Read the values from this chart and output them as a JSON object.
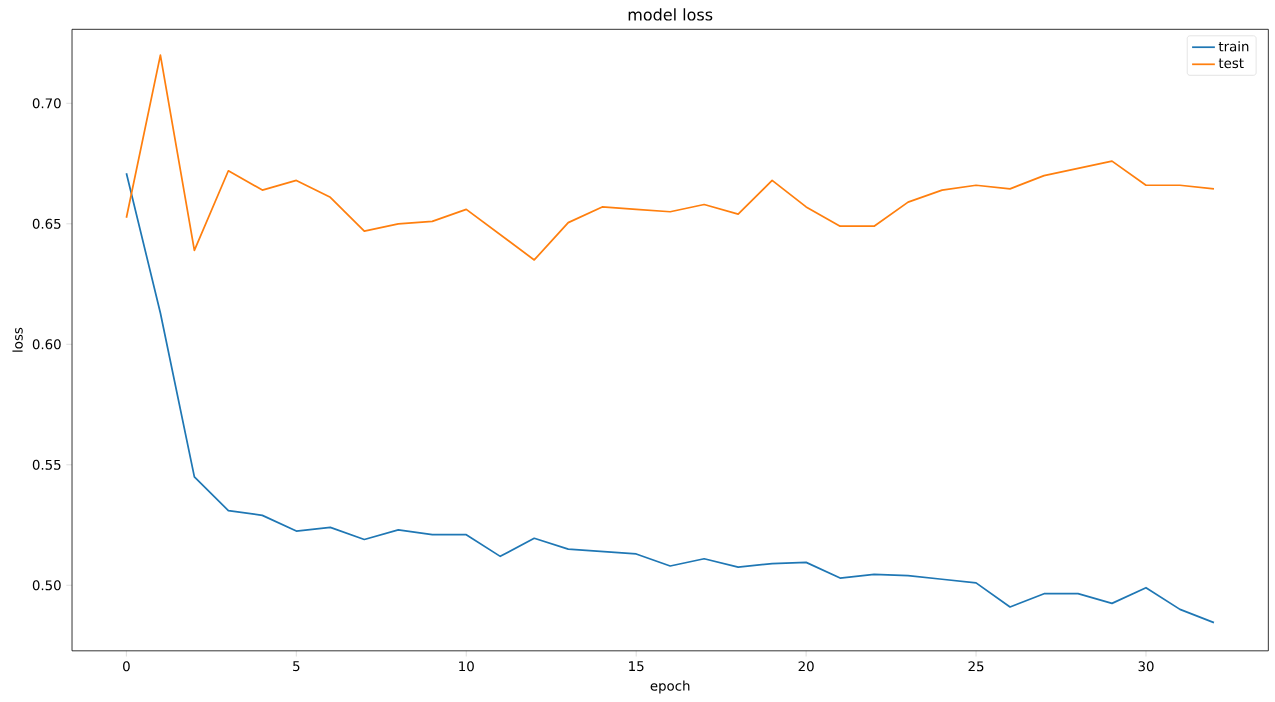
{
  "chart_data": {
    "type": "line",
    "title": "model loss",
    "xlabel": "epoch",
    "ylabel": "loss",
    "x": [
      0,
      1,
      2,
      3,
      4,
      5,
      6,
      7,
      8,
      9,
      10,
      11,
      12,
      13,
      14,
      15,
      16,
      17,
      18,
      19,
      20,
      21,
      22,
      23,
      24,
      25,
      26,
      27,
      28,
      29,
      30,
      31,
      32
    ],
    "series": [
      {
        "name": "train",
        "color": "#1f77b4",
        "values": [
          0.671,
          0.613,
          0.545,
          0.531,
          0.529,
          0.5225,
          0.524,
          0.519,
          0.523,
          0.521,
          0.521,
          0.512,
          0.5195,
          0.515,
          0.514,
          0.513,
          0.508,
          0.511,
          0.5075,
          0.509,
          0.5095,
          0.503,
          0.5045,
          0.504,
          0.5025,
          0.501,
          0.491,
          0.4965,
          0.4965,
          0.4925,
          0.499,
          0.49,
          0.4845
        ]
      },
      {
        "name": "test",
        "color": "#ff7f0e",
        "values": [
          0.6525,
          0.72,
          0.639,
          0.672,
          0.664,
          0.668,
          0.661,
          0.647,
          0.65,
          0.651,
          0.656,
          0.6455,
          0.635,
          0.6505,
          0.657,
          0.656,
          0.655,
          0.658,
          0.654,
          0.668,
          0.657,
          0.649,
          0.649,
          0.659,
          0.664,
          0.666,
          0.6645,
          0.67,
          0.673,
          0.676,
          0.666,
          0.666,
          0.6645
        ]
      }
    ],
    "xlim": [
      -1.6,
      33.6
    ],
    "ylim": [
      0.4728,
      0.7307
    ],
    "xticks": [
      0,
      5,
      10,
      15,
      20,
      25,
      30
    ],
    "yticks": [
      {
        "value": 0.5,
        "label": "0.50"
      },
      {
        "value": 0.55,
        "label": "0.55"
      },
      {
        "value": 0.6,
        "label": "0.60"
      },
      {
        "value": 0.65,
        "label": "0.65"
      },
      {
        "value": 0.7,
        "label": "0.70"
      }
    ],
    "legend": "top right",
    "grid": false,
    "marker": "none",
    "line_style": "solid"
  }
}
